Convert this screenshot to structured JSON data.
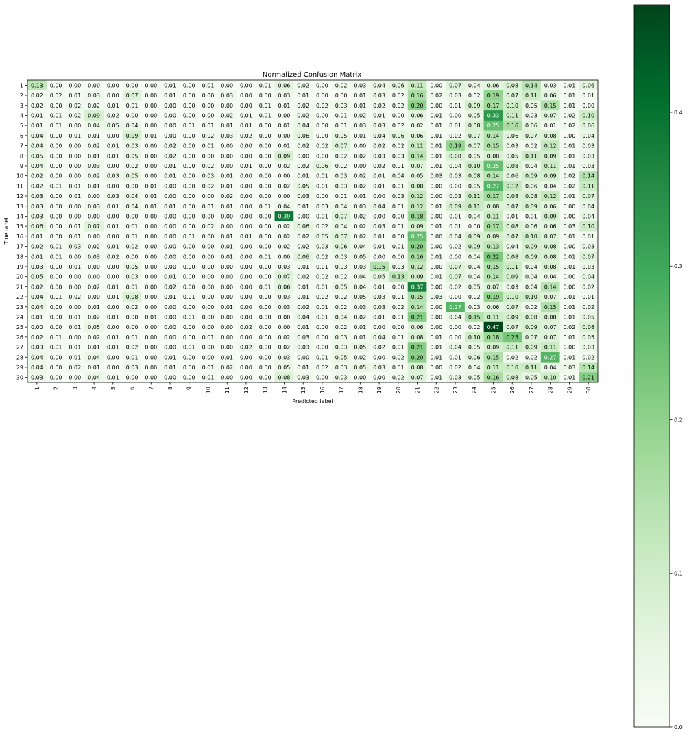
{
  "chart_data": {
    "type": "heatmap",
    "title": "Normalized Confusion Matrix",
    "xlabel": "Predicted label",
    "ylabel": "True label",
    "x_categories": [
      "1",
      "2",
      "3",
      "4",
      "5",
      "6",
      "7",
      "8",
      "9",
      "10",
      "11",
      "12",
      "13",
      "14",
      "15",
      "16",
      "17",
      "18",
      "19",
      "20",
      "21",
      "22",
      "23",
      "24",
      "25",
      "26",
      "27",
      "28",
      "29",
      "30"
    ],
    "y_categories": [
      "1",
      "2",
      "3",
      "4",
      "5",
      "6",
      "7",
      "8",
      "9",
      "10",
      "11",
      "12",
      "13",
      "14",
      "15",
      "16",
      "17",
      "18",
      "19",
      "20",
      "21",
      "22",
      "23",
      "24",
      "25",
      "26",
      "27",
      "28",
      "29",
      "30"
    ],
    "value_format": "2 decimals",
    "colormap": "Greens",
    "color_range": [
      0.0,
      0.47
    ],
    "colorbar_ticks": [
      "0.0",
      "0.1",
      "0.2",
      "0.3",
      "0.4"
    ],
    "colorbar_tick_values": [
      0.0,
      0.1,
      0.2,
      0.3,
      0.4
    ],
    "grid": false,
    "values": [
      [
        0.13,
        0.0,
        0.0,
        0.0,
        0.0,
        0.0,
        0.0,
        0.01,
        0.0,
        0.01,
        0.0,
        0.0,
        0.01,
        0.06,
        0.02,
        0.0,
        0.02,
        0.03,
        0.04,
        0.06,
        0.11,
        0.0,
        0.07,
        0.04,
        0.06,
        0.08,
        0.14,
        0.03,
        0.01,
        0.06
      ],
      [
        0.02,
        0.02,
        0.01,
        0.03,
        0.0,
        0.07,
        0.0,
        0.01,
        0.0,
        0.0,
        0.03,
        0.0,
        0.0,
        0.03,
        0.01,
        0.0,
        0.0,
        0.01,
        0.03,
        0.02,
        0.16,
        0.02,
        0.03,
        0.02,
        0.19,
        0.07,
        0.11,
        0.06,
        0.01,
        0.01
      ],
      [
        0.02,
        0.0,
        0.02,
        0.02,
        0.01,
        0.01,
        0.0,
        0.0,
        0.0,
        0.0,
        0.0,
        0.0,
        0.01,
        0.01,
        0.02,
        0.02,
        0.03,
        0.01,
        0.02,
        0.02,
        0.2,
        0.0,
        0.01,
        0.09,
        0.17,
        0.1,
        0.05,
        0.15,
        0.01,
        0.0
      ],
      [
        0.01,
        0.01,
        0.02,
        0.09,
        0.02,
        0.0,
        0.0,
        0.0,
        0.0,
        0.0,
        0.02,
        0.01,
        0.01,
        0.0,
        0.02,
        0.0,
        0.01,
        0.02,
        0.01,
        0.0,
        0.06,
        0.01,
        0.0,
        0.05,
        0.33,
        0.11,
        0.03,
        0.07,
        0.02,
        0.1
      ],
      [
        0.01,
        0.01,
        0.0,
        0.04,
        0.05,
        0.04,
        0.0,
        0.0,
        0.01,
        0.01,
        0.01,
        0.01,
        0.0,
        0.01,
        0.04,
        0.0,
        0.01,
        0.03,
        0.03,
        0.02,
        0.02,
        0.01,
        0.01,
        0.08,
        0.25,
        0.16,
        0.06,
        0.01,
        0.02,
        0.06
      ],
      [
        0.04,
        0.0,
        0.01,
        0.01,
        0.0,
        0.09,
        0.01,
        0.0,
        0.0,
        0.02,
        0.03,
        0.02,
        0.0,
        0.0,
        0.06,
        0.0,
        0.05,
        0.01,
        0.04,
        0.06,
        0.06,
        0.01,
        0.02,
        0.07,
        0.14,
        0.06,
        0.07,
        0.08,
        0.0,
        0.04
      ],
      [
        0.04,
        0.0,
        0.0,
        0.02,
        0.01,
        0.03,
        0.0,
        0.02,
        0.0,
        0.01,
        0.0,
        0.0,
        0.0,
        0.01,
        0.02,
        0.02,
        0.07,
        0.0,
        0.02,
        0.02,
        0.11,
        0.01,
        0.19,
        0.07,
        0.15,
        0.03,
        0.02,
        0.12,
        0.01,
        0.03
      ],
      [
        0.05,
        0.0,
        0.0,
        0.01,
        0.01,
        0.05,
        0.0,
        0.02,
        0.0,
        0.0,
        0.0,
        0.0,
        0.0,
        0.09,
        0.0,
        0.0,
        0.02,
        0.02,
        0.03,
        0.03,
        0.14,
        0.01,
        0.08,
        0.05,
        0.08,
        0.05,
        0.11,
        0.09,
        0.01,
        0.03
      ],
      [
        0.04,
        0.0,
        0.0,
        0.03,
        0.0,
        0.02,
        0.0,
        0.01,
        0.0,
        0.02,
        0.0,
        0.01,
        0.0,
        0.02,
        0.02,
        0.06,
        0.02,
        0.0,
        0.02,
        0.01,
        0.07,
        0.01,
        0.04,
        0.1,
        0.25,
        0.08,
        0.04,
        0.11,
        0.01,
        0.03
      ],
      [
        0.02,
        0.0,
        0.0,
        0.02,
        0.03,
        0.05,
        0.0,
        0.01,
        0.0,
        0.03,
        0.01,
        0.0,
        0.0,
        0.0,
        0.01,
        0.01,
        0.03,
        0.02,
        0.01,
        0.04,
        0.05,
        0.03,
        0.03,
        0.08,
        0.14,
        0.06,
        0.09,
        0.09,
        0.02,
        0.14
      ],
      [
        0.02,
        0.01,
        0.01,
        0.01,
        0.0,
        0.0,
        0.01,
        0.0,
        0.0,
        0.02,
        0.01,
        0.0,
        0.0,
        0.02,
        0.05,
        0.01,
        0.03,
        0.02,
        0.01,
        0.01,
        0.08,
        0.0,
        0.0,
        0.05,
        0.27,
        0.12,
        0.06,
        0.04,
        0.02,
        0.11
      ],
      [
        0.03,
        0.0,
        0.01,
        0.0,
        0.03,
        0.04,
        0.01,
        0.0,
        0.0,
        0.0,
        0.02,
        0.0,
        0.0,
        0.0,
        0.03,
        0.0,
        0.01,
        0.01,
        0.0,
        0.03,
        0.12,
        0.0,
        0.03,
        0.11,
        0.17,
        0.08,
        0.08,
        0.12,
        0.01,
        0.07
      ],
      [
        0.03,
        0.0,
        0.0,
        0.03,
        0.01,
        0.04,
        0.01,
        0.01,
        0.0,
        0.01,
        0.01,
        0.0,
        0.01,
        0.04,
        0.01,
        0.03,
        0.04,
        0.03,
        0.04,
        0.01,
        0.12,
        0.01,
        0.09,
        0.11,
        0.08,
        0.07,
        0.09,
        0.06,
        0.0,
        0.04
      ],
      [
        0.03,
        0.0,
        0.0,
        0.0,
        0.0,
        0.0,
        0.0,
        0.0,
        0.0,
        0.0,
        0.0,
        0.0,
        0.0,
        0.39,
        0.0,
        0.01,
        0.07,
        0.02,
        0.0,
        0.0,
        0.18,
        0.0,
        0.01,
        0.04,
        0.11,
        0.01,
        0.01,
        0.09,
        0.0,
        0.04
      ],
      [
        0.06,
        0.0,
        0.01,
        0.07,
        0.01,
        0.01,
        0.0,
        0.0,
        0.0,
        0.02,
        0.0,
        0.0,
        0.0,
        0.02,
        0.06,
        0.02,
        0.04,
        0.02,
        0.03,
        0.01,
        0.09,
        0.01,
        0.01,
        0.0,
        0.17,
        0.08,
        0.06,
        0.06,
        0.03,
        0.1
      ],
      [
        0.01,
        0.0,
        0.01,
        0.0,
        0.0,
        0.01,
        0.0,
        0.0,
        0.01,
        0.0,
        0.01,
        0.01,
        0.0,
        0.02,
        0.02,
        0.05,
        0.07,
        0.02,
        0.01,
        0.0,
        0.25,
        0.0,
        0.04,
        0.09,
        0.09,
        0.07,
        0.1,
        0.07,
        0.01,
        0.01
      ],
      [
        0.02,
        0.01,
        0.03,
        0.02,
        0.01,
        0.02,
        0.0,
        0.0,
        0.0,
        0.0,
        0.01,
        0.0,
        0.0,
        0.02,
        0.02,
        0.03,
        0.06,
        0.04,
        0.01,
        0.01,
        0.2,
        0.0,
        0.02,
        0.09,
        0.13,
        0.04,
        0.09,
        0.08,
        0.0,
        0.03
      ],
      [
        0.01,
        0.01,
        0.0,
        0.03,
        0.02,
        0.0,
        0.0,
        0.0,
        0.0,
        0.0,
        0.01,
        0.0,
        0.01,
        0.0,
        0.06,
        0.02,
        0.03,
        0.05,
        0.0,
        0.0,
        0.16,
        0.01,
        0.0,
        0.04,
        0.22,
        0.08,
        0.09,
        0.08,
        0.01,
        0.07
      ],
      [
        0.03,
        0.0,
        0.01,
        0.0,
        0.0,
        0.05,
        0.0,
        0.0,
        0.0,
        0.0,
        0.0,
        0.0,
        0.0,
        0.03,
        0.01,
        0.01,
        0.03,
        0.03,
        0.15,
        0.03,
        0.12,
        0.0,
        0.07,
        0.04,
        0.15,
        0.11,
        0.04,
        0.08,
        0.01,
        0.03
      ],
      [
        0.05,
        0.0,
        0.0,
        0.0,
        0.0,
        0.03,
        0.0,
        0.01,
        0.0,
        0.0,
        0.0,
        0.0,
        0.0,
        0.07,
        0.02,
        0.02,
        0.02,
        0.04,
        0.05,
        0.13,
        0.09,
        0.01,
        0.07,
        0.04,
        0.14,
        0.09,
        0.04,
        0.04,
        0.0,
        0.04
      ],
      [
        0.02,
        0.0,
        0.0,
        0.02,
        0.01,
        0.01,
        0.0,
        0.02,
        0.0,
        0.0,
        0.0,
        0.0,
        0.01,
        0.06,
        0.01,
        0.01,
        0.05,
        0.04,
        0.01,
        0.0,
        0.37,
        0.0,
        0.02,
        0.05,
        0.07,
        0.03,
        0.04,
        0.14,
        0.0,
        0.02
      ],
      [
        0.04,
        0.01,
        0.02,
        0.0,
        0.01,
        0.08,
        0.0,
        0.01,
        0.01,
        0.0,
        0.0,
        0.0,
        0.0,
        0.03,
        0.01,
        0.02,
        0.02,
        0.05,
        0.03,
        0.01,
        0.15,
        0.03,
        0.0,
        0.02,
        0.19,
        0.1,
        0.1,
        0.07,
        0.01,
        0.01
      ],
      [
        0.04,
        0.0,
        0.0,
        0.01,
        0.0,
        0.02,
        0.0,
        0.0,
        0.0,
        0.0,
        0.01,
        0.0,
        0.0,
        0.03,
        0.02,
        0.01,
        0.02,
        0.03,
        0.03,
        0.02,
        0.14,
        0.0,
        0.27,
        0.03,
        0.06,
        0.07,
        0.02,
        0.15,
        0.01,
        0.02
      ],
      [
        0.01,
        0.0,
        0.01,
        0.02,
        0.01,
        0.0,
        0.01,
        0.0,
        0.01,
        0.0,
        0.0,
        0.0,
        0.0,
        0.0,
        0.04,
        0.01,
        0.04,
        0.02,
        0.01,
        0.01,
        0.21,
        0.0,
        0.04,
        0.15,
        0.11,
        0.09,
        0.08,
        0.08,
        0.01,
        0.05
      ],
      [
        0.0,
        0.0,
        0.01,
        0.05,
        0.0,
        0.0,
        0.0,
        0.0,
        0.0,
        0.0,
        0.0,
        0.02,
        0.0,
        0.0,
        0.01,
        0.0,
        0.02,
        0.01,
        0.0,
        0.0,
        0.06,
        0.0,
        0.0,
        0.02,
        0.47,
        0.07,
        0.09,
        0.07,
        0.02,
        0.08
      ],
      [
        0.02,
        0.01,
        0.0,
        0.02,
        0.01,
        0.01,
        0.0,
        0.0,
        0.0,
        0.01,
        0.0,
        0.0,
        0.0,
        0.02,
        0.03,
        0.0,
        0.03,
        0.01,
        0.04,
        0.01,
        0.08,
        0.01,
        0.0,
        0.1,
        0.18,
        0.23,
        0.07,
        0.07,
        0.01,
        0.05
      ],
      [
        0.03,
        0.01,
        0.01,
        0.01,
        0.01,
        0.02,
        0.0,
        0.0,
        0.01,
        0.0,
        0.0,
        0.02,
        0.0,
        0.02,
        0.03,
        0.0,
        0.03,
        0.05,
        0.02,
        0.01,
        0.21,
        0.01,
        0.04,
        0.05,
        0.09,
        0.11,
        0.09,
        0.11,
        0.0,
        0.03
      ],
      [
        0.04,
        0.0,
        0.01,
        0.04,
        0.0,
        0.01,
        0.0,
        0.01,
        0.0,
        0.0,
        0.01,
        0.0,
        0.0,
        0.03,
        0.0,
        0.01,
        0.05,
        0.02,
        0.0,
        0.02,
        0.2,
        0.01,
        0.01,
        0.06,
        0.15,
        0.02,
        0.02,
        0.27,
        0.01,
        0.02
      ],
      [
        0.04,
        0.0,
        0.02,
        0.01,
        0.0,
        0.03,
        0.0,
        0.01,
        0.0,
        0.01,
        0.02,
        0.0,
        0.0,
        0.05,
        0.01,
        0.02,
        0.03,
        0.05,
        0.03,
        0.01,
        0.08,
        0.0,
        0.02,
        0.04,
        0.11,
        0.1,
        0.11,
        0.04,
        0.03,
        0.14
      ],
      [
        0.03,
        0.0,
        0.0,
        0.04,
        0.01,
        0.0,
        0.0,
        0.0,
        0.0,
        0.01,
        0.0,
        0.0,
        0.0,
        0.08,
        0.03,
        0.0,
        0.03,
        0.0,
        0.0,
        0.02,
        0.07,
        0.01,
        0.03,
        0.05,
        0.16,
        0.08,
        0.05,
        0.1,
        0.01,
        0.21
      ]
    ]
  }
}
